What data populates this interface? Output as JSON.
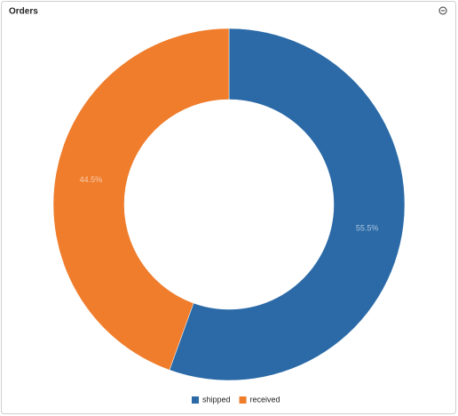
{
  "chart_data": {
    "type": "donut",
    "title": "Orders",
    "categories": [
      "shipped",
      "received"
    ],
    "values": [
      55.5,
      44.5
    ],
    "value_labels": [
      "55.5%",
      "44.5%"
    ],
    "colors": [
      "#2b6aa7",
      "#ef7d2c"
    ]
  }
}
